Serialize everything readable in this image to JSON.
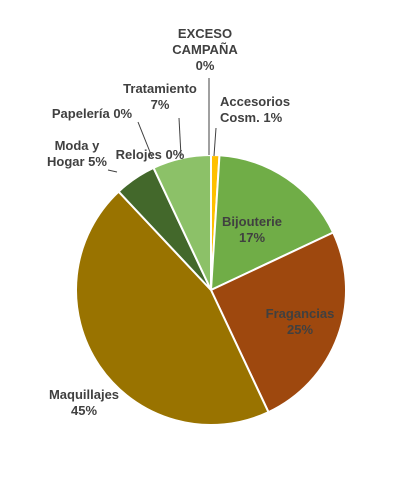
{
  "chart_data": {
    "type": "pie",
    "title": "",
    "slices": [
      {
        "name": "Accesorios Cosm.",
        "value": 1,
        "label_lines": [
          "Accesorios",
          "Cosm. 1%"
        ],
        "color": "#ffc000"
      },
      {
        "name": "Bijouterie",
        "value": 17,
        "label_lines": [
          "Bijouterie",
          "17%"
        ],
        "color": "#70ad47"
      },
      {
        "name": "Fragancias",
        "value": 25,
        "label_lines": [
          "Fragancias",
          "25%"
        ],
        "color": "#9e480e"
      },
      {
        "name": "Maquillajes",
        "value": 45,
        "label_lines": [
          "Maquillajes",
          "45%"
        ],
        "color": "#997300"
      },
      {
        "name": "Moda y Hogar",
        "value": 5,
        "label_lines": [
          "Moda y",
          "Hogar 5%"
        ],
        "color": "#43682b"
      },
      {
        "name": "Papelería",
        "value": 0,
        "label_lines": [
          "Papelería 0%"
        ],
        "color": "#43682b"
      },
      {
        "name": "Relojes",
        "value": 0,
        "label_lines": [
          "Relojes 0%"
        ],
        "color": "#43682b"
      },
      {
        "name": "Tratamiento",
        "value": 7,
        "label_lines": [
          "Tratamiento",
          "7%"
        ],
        "color": "#8cc168"
      },
      {
        "name": "EXCESO CAMPAÑA",
        "value": 0,
        "label_lines": [
          "EXCESO",
          "CAMPAÑA",
          "0%"
        ],
        "color": "#8cc168"
      }
    ]
  }
}
